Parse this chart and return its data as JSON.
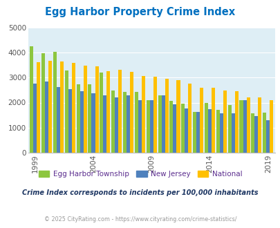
{
  "title": "Egg Harbor Property Crime Index",
  "years": [
    1999,
    2000,
    2001,
    2002,
    2003,
    2004,
    2005,
    2006,
    2007,
    2008,
    2009,
    2010,
    2011,
    2012,
    2013,
    2014,
    2015,
    2016,
    2017,
    2018,
    2019,
    2020
  ],
  "egg_harbor": [
    4250,
    3980,
    4020,
    3280,
    2720,
    2730,
    3200,
    2480,
    2430,
    2440,
    2100,
    2300,
    2060,
    1960,
    1630,
    2000,
    1720,
    1900,
    2100,
    1580,
    1600,
    null
  ],
  "new_jersey": [
    2760,
    2840,
    2620,
    2540,
    2450,
    2360,
    2300,
    2220,
    2300,
    2100,
    2100,
    2290,
    1940,
    1760,
    1620,
    1750,
    1560,
    1560,
    2100,
    1450,
    1310,
    null
  ],
  "national": [
    3600,
    3680,
    3640,
    3590,
    3480,
    3440,
    3250,
    3300,
    3230,
    3050,
    3040,
    2950,
    2900,
    2750,
    2600,
    2600,
    2490,
    2450,
    2200,
    2200,
    2110,
    null
  ],
  "color_egg": "#8dc63f",
  "color_nj": "#4f81bd",
  "color_nat": "#ffc000",
  "color_title": "#0070c0",
  "color_bg_plot": "#deeef5",
  "color_legend_text": "#5b2d8e",
  "color_subtitle": "#1f3864",
  "color_footer": "#999999",
  "ylabel_ticks": [
    0,
    1000,
    2000,
    3000,
    4000,
    5000
  ],
  "xtick_years": [
    1999,
    2004,
    2009,
    2014,
    2019
  ],
  "ylim": [
    0,
    5000
  ],
  "subtitle": "Crime Index corresponds to incidents per 100,000 inhabitants",
  "footer": "© 2025 CityRating.com - https://www.cityrating.com/crime-statistics/"
}
